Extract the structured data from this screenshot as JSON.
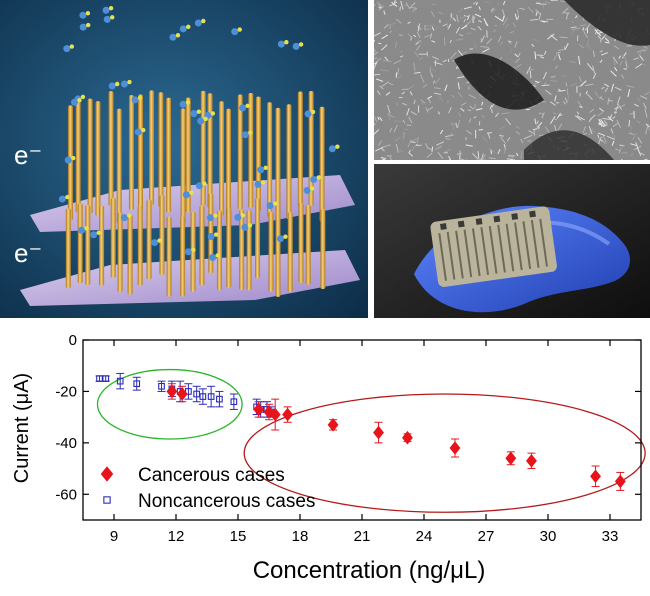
{
  "illustration": {
    "electron_label_top": "e⁻",
    "electron_label_bottom": "e⁻",
    "colors": {
      "background": "#123a5c",
      "nanowire": "#e0a73a",
      "substrate": "#c9b6e6",
      "molecule": "#4f8fd8"
    }
  },
  "sem_image": {
    "colors": {
      "base": "#7e7e7e"
    }
  },
  "device_photo": {
    "colors": {
      "glove": "#2f5fe0",
      "sensor": "#b8b39a"
    }
  },
  "chart_data": {
    "type": "scatter",
    "xlabel": "Concentration (ng/μL)",
    "ylabel": "Current (μA)",
    "xlim": [
      7.5,
      34.5
    ],
    "ylim": [
      -70,
      0
    ],
    "xticks": [
      9,
      12,
      15,
      18,
      21,
      24,
      27,
      30,
      33
    ],
    "yticks": [
      0,
      -20,
      -40,
      -60
    ],
    "grid": false,
    "legend_position": "bottom-left",
    "series": [
      {
        "name": "Cancerous cases",
        "marker": "filled-diamond",
        "color": "#e8141b",
        "points": [
          {
            "x": 11.8,
            "y": -20,
            "err": 3
          },
          {
            "x": 12.3,
            "y": -21,
            "err": 3
          },
          {
            "x": 16.0,
            "y": -27,
            "err": 3
          },
          {
            "x": 16.5,
            "y": -28,
            "err": 3
          },
          {
            "x": 16.8,
            "y": -29,
            "err": 6
          },
          {
            "x": 17.4,
            "y": -29,
            "err": 3
          },
          {
            "x": 19.6,
            "y": -33,
            "err": 2
          },
          {
            "x": 21.8,
            "y": -36,
            "err": 4
          },
          {
            "x": 23.2,
            "y": -38,
            "err": 1.5
          },
          {
            "x": 25.5,
            "y": -42,
            "err": 3.5
          },
          {
            "x": 28.2,
            "y": -46,
            "err": 2.5
          },
          {
            "x": 29.2,
            "y": -47,
            "err": 3
          },
          {
            "x": 32.3,
            "y": -53,
            "err": 4
          },
          {
            "x": 33.5,
            "y": -55,
            "err": 3.5
          }
        ]
      },
      {
        "name": "Noncancerous cases",
        "marker": "open-square",
        "color": "#2b2bb8",
        "points": [
          {
            "x": 8.3,
            "y": -15,
            "err": 1
          },
          {
            "x": 8.6,
            "y": -15,
            "err": 1
          },
          {
            "x": 9.3,
            "y": -16,
            "err": 3
          },
          {
            "x": 10.1,
            "y": -17,
            "err": 2.5
          },
          {
            "x": 11.3,
            "y": -18,
            "err": 2
          },
          {
            "x": 11.8,
            "y": -19,
            "err": 3
          },
          {
            "x": 12.2,
            "y": -20,
            "err": 4
          },
          {
            "x": 12.6,
            "y": -20,
            "err": 3
          },
          {
            "x": 13.0,
            "y": -21,
            "err": 3
          },
          {
            "x": 13.3,
            "y": -22,
            "err": 3
          },
          {
            "x": 13.7,
            "y": -22,
            "err": 4
          },
          {
            "x": 14.1,
            "y": -23,
            "err": 3
          },
          {
            "x": 14.8,
            "y": -24,
            "err": 3
          },
          {
            "x": 15.9,
            "y": -26,
            "err": 3
          },
          {
            "x": 16.1,
            "y": -27,
            "err": 3
          },
          {
            "x": 16.4,
            "y": -27,
            "err": 3
          },
          {
            "x": 16.6,
            "y": -28,
            "err": 2
          }
        ]
      }
    ],
    "annotations": [
      {
        "shape": "ellipse",
        "color": "#2bb52b",
        "center": {
          "x": 11.7,
          "y": -25
        },
        "rx": 3.5,
        "ry": 13.5
      },
      {
        "shape": "ellipse",
        "color": "#b51a1a",
        "center": {
          "x": 25.0,
          "y": -44
        },
        "rx": 9.7,
        "ry": 23
      }
    ]
  }
}
